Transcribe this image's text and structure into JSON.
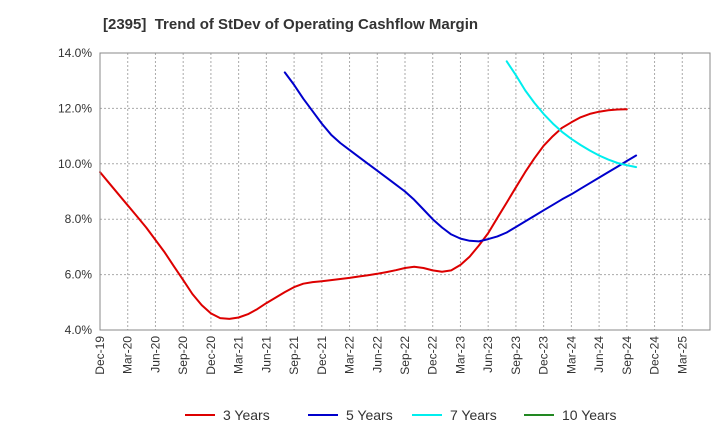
{
  "chart_data": {
    "type": "line",
    "title": "[2395]  Trend of StDev of Operating Cashflow Margin",
    "xlabel": "",
    "ylabel": "",
    "ylim": [
      4.0,
      14.0
    ],
    "y_ticks": [
      "4.0%",
      "6.0%",
      "8.0%",
      "10.0%",
      "12.0%",
      "14.0%"
    ],
    "y_tick_values": [
      4,
      6,
      8,
      10,
      12,
      14
    ],
    "x_ticks": [
      "Dec-19",
      "Mar-20",
      "Jun-20",
      "Sep-20",
      "Dec-20",
      "Mar-21",
      "Jun-21",
      "Sep-21",
      "Dec-21",
      "Mar-22",
      "Jun-22",
      "Sep-22",
      "Dec-22",
      "Mar-23",
      "Jun-23",
      "Sep-23",
      "Dec-23",
      "Mar-24",
      "Jun-24",
      "Sep-24",
      "Dec-24",
      "Mar-25"
    ],
    "grid": true,
    "legend_position": "bottom",
    "series": [
      {
        "name": "3 Years",
        "color": "#dd0000",
        "points": [
          [
            "Dec-19",
            9.7
          ],
          [
            "Jan-20",
            9.3
          ],
          [
            "Feb-20",
            8.9
          ],
          [
            "Mar-20",
            8.5
          ],
          [
            "Apr-20",
            8.1
          ],
          [
            "May-20",
            7.7
          ],
          [
            "Jun-20",
            7.25
          ],
          [
            "Jul-20",
            6.8
          ],
          [
            "Aug-20",
            6.3
          ],
          [
            "Sep-20",
            5.8
          ],
          [
            "Oct-20",
            5.3
          ],
          [
            "Nov-20",
            4.9
          ],
          [
            "Dec-20",
            4.6
          ],
          [
            "Jan-21",
            4.43
          ],
          [
            "Feb-21",
            4.4
          ],
          [
            "Mar-21",
            4.45
          ],
          [
            "Apr-21",
            4.57
          ],
          [
            "May-21",
            4.75
          ],
          [
            "Jun-21",
            4.97
          ],
          [
            "Jul-21",
            5.17
          ],
          [
            "Aug-21",
            5.37
          ],
          [
            "Sep-21",
            5.55
          ],
          [
            "Oct-21",
            5.67
          ],
          [
            "Nov-21",
            5.73
          ],
          [
            "Dec-21",
            5.76
          ],
          [
            "Jan-22",
            5.8
          ],
          [
            "Feb-22",
            5.84
          ],
          [
            "Mar-22",
            5.88
          ],
          [
            "Apr-22",
            5.93
          ],
          [
            "May-22",
            5.98
          ],
          [
            "Jun-22",
            6.03
          ],
          [
            "Jul-22",
            6.09
          ],
          [
            "Aug-22",
            6.16
          ],
          [
            "Sep-22",
            6.24
          ],
          [
            "Oct-22",
            6.28
          ],
          [
            "Nov-22",
            6.24
          ],
          [
            "Dec-22",
            6.15
          ],
          [
            "Jan-23",
            6.1
          ],
          [
            "Feb-23",
            6.15
          ],
          [
            "Mar-23",
            6.35
          ],
          [
            "Apr-23",
            6.65
          ],
          [
            "May-23",
            7.05
          ],
          [
            "Jun-23",
            7.5
          ],
          [
            "Jul-23",
            8.05
          ],
          [
            "Aug-23",
            8.6
          ],
          [
            "Sep-23",
            9.15
          ],
          [
            "Oct-23",
            9.7
          ],
          [
            "Nov-23",
            10.2
          ],
          [
            "Dec-23",
            10.65
          ],
          [
            "Jan-24",
            11.0
          ],
          [
            "Feb-24",
            11.3
          ],
          [
            "Mar-24",
            11.5
          ],
          [
            "Apr-24",
            11.68
          ],
          [
            "May-24",
            11.8
          ],
          [
            "Jun-24",
            11.88
          ],
          [
            "Jul-24",
            11.93
          ],
          [
            "Aug-24",
            11.96
          ],
          [
            "Sep-24",
            11.97
          ]
        ]
      },
      {
        "name": "5 Years",
        "color": "#0000cc",
        "points": [
          [
            "Aug-21",
            13.3
          ],
          [
            "Sep-21",
            12.85
          ],
          [
            "Oct-21",
            12.35
          ],
          [
            "Nov-21",
            11.9
          ],
          [
            "Dec-21",
            11.45
          ],
          [
            "Jan-22",
            11.05
          ],
          [
            "Feb-22",
            10.75
          ],
          [
            "Mar-22",
            10.5
          ],
          [
            "Apr-22",
            10.25
          ],
          [
            "May-22",
            10.0
          ],
          [
            "Jun-22",
            9.75
          ],
          [
            "Jul-22",
            9.5
          ],
          [
            "Aug-22",
            9.25
          ],
          [
            "Sep-22",
            9.0
          ],
          [
            "Oct-22",
            8.7
          ],
          [
            "Nov-22",
            8.35
          ],
          [
            "Dec-22",
            8.0
          ],
          [
            "Jan-23",
            7.7
          ],
          [
            "Feb-23",
            7.45
          ],
          [
            "Mar-23",
            7.3
          ],
          [
            "Apr-23",
            7.22
          ],
          [
            "May-23",
            7.2
          ],
          [
            "Jun-23",
            7.28
          ],
          [
            "Jul-23",
            7.38
          ],
          [
            "Aug-23",
            7.52
          ],
          [
            "Sep-23",
            7.72
          ],
          [
            "Oct-23",
            7.92
          ],
          [
            "Nov-23",
            8.12
          ],
          [
            "Dec-23",
            8.32
          ],
          [
            "Jan-24",
            8.52
          ],
          [
            "Feb-24",
            8.72
          ],
          [
            "Mar-24",
            8.9
          ],
          [
            "Apr-24",
            9.1
          ],
          [
            "May-24",
            9.3
          ],
          [
            "Jun-24",
            9.5
          ],
          [
            "Jul-24",
            9.7
          ],
          [
            "Aug-24",
            9.9
          ],
          [
            "Sep-24",
            10.1
          ],
          [
            "Oct-24",
            10.3
          ]
        ]
      },
      {
        "name": "7 Years",
        "color": "#00eeee",
        "points": [
          [
            "Aug-23",
            13.7
          ],
          [
            "Sep-23",
            13.2
          ],
          [
            "Oct-23",
            12.65
          ],
          [
            "Nov-23",
            12.2
          ],
          [
            "Dec-23",
            11.8
          ],
          [
            "Jan-24",
            11.45
          ],
          [
            "Feb-24",
            11.15
          ],
          [
            "Mar-24",
            10.9
          ],
          [
            "Apr-24",
            10.68
          ],
          [
            "May-24",
            10.48
          ],
          [
            "Jun-24",
            10.3
          ],
          [
            "Jul-24",
            10.15
          ],
          [
            "Aug-24",
            10.03
          ],
          [
            "Sep-24",
            9.95
          ],
          [
            "Oct-24",
            9.88
          ]
        ]
      },
      {
        "name": "10 Years",
        "color": "#228822",
        "points": []
      }
    ]
  }
}
